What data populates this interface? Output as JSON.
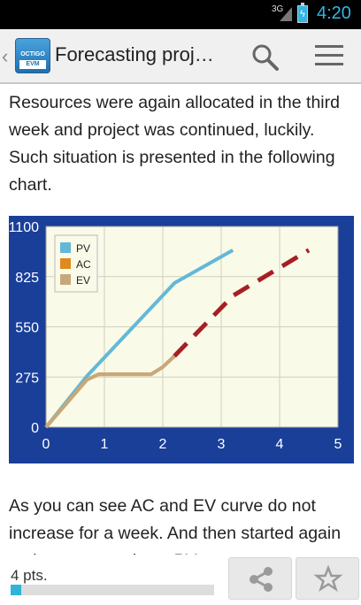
{
  "status": {
    "network": "3G",
    "time": "4:20"
  },
  "actionbar": {
    "app_logo_text": "OCTIGO",
    "app_logo_sub": "EVM",
    "title": "Forecasting proj…"
  },
  "content": {
    "paragraph1": " Resources were again allocated in the third week and project was continued, luckily. Such situation is presented in the following chart.",
    "paragraph2": "As you can see AC and EV curve do not increase for a week. And then started again at the same angle as PV curve"
  },
  "chart_data": {
    "type": "line",
    "ylim": [
      0,
      1100
    ],
    "xlim": [
      0,
      5
    ],
    "y_ticks": [
      "0",
      "275",
      "550",
      "825",
      "1100"
    ],
    "x_ticks": [
      "0",
      "1",
      "2",
      "3",
      "4",
      "5"
    ],
    "grid": true,
    "legend_position": "top-left",
    "series": [
      {
        "name": "PV",
        "color": "#63b8d8",
        "dashed": false,
        "points": [
          [
            0,
            0
          ],
          [
            0.7,
            280
          ],
          [
            2.2,
            790
          ],
          [
            3.2,
            970
          ]
        ]
      },
      {
        "name": "AC",
        "color": "#e08a1e",
        "dashed": false,
        "points": [
          [
            0,
            0
          ],
          [
            0.7,
            260
          ],
          [
            0.9,
            290
          ],
          [
            1.8,
            290
          ],
          [
            2.0,
            330
          ],
          [
            2.2,
            390
          ]
        ]
      },
      {
        "name": "EV",
        "color": "#c8a87a",
        "dashed": false,
        "points": [
          [
            0,
            0
          ],
          [
            0.7,
            260
          ],
          [
            0.9,
            290
          ],
          [
            1.8,
            290
          ],
          [
            2.0,
            330
          ],
          [
            2.2,
            390
          ]
        ]
      },
      {
        "name": "",
        "color": "#a61f24",
        "dashed": true,
        "points": [
          [
            2.2,
            390
          ],
          [
            3.2,
            720
          ],
          [
            4.5,
            970
          ]
        ]
      }
    ]
  },
  "bottom": {
    "points_label": "4 pts.",
    "progress": 0.05
  }
}
